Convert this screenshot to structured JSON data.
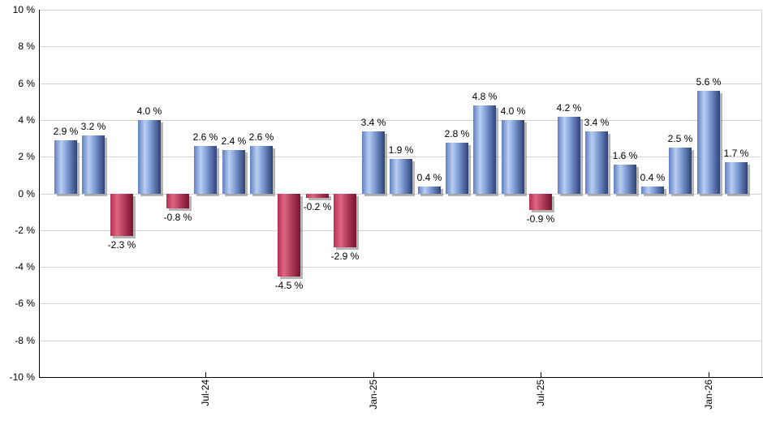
{
  "chart_data": {
    "type": "bar",
    "title": "",
    "xlabel": "",
    "ylabel": "",
    "ylim": [
      -10,
      10
    ],
    "grid": true,
    "legend": "none",
    "bars": [
      {
        "value": 2.9,
        "label": "2.9 %"
      },
      {
        "value": 3.2,
        "label": "3.2 %"
      },
      {
        "value": -2.3,
        "label": "-2.3 %"
      },
      {
        "value": 4.0,
        "label": "4.0 %"
      },
      {
        "value": -0.8,
        "label": "-0.8 %"
      },
      {
        "value": 2.6,
        "label": "2.6 %"
      },
      {
        "value": 2.4,
        "label": "2.4 %"
      },
      {
        "value": 2.6,
        "label": "2.6 %"
      },
      {
        "value": -4.5,
        "label": "-4.5 %"
      },
      {
        "value": -0.2,
        "label": "-0.2 %"
      },
      {
        "value": -2.9,
        "label": "-2.9 %"
      },
      {
        "value": 3.4,
        "label": "3.4 %"
      },
      {
        "value": 1.9,
        "label": "1.9 %"
      },
      {
        "value": 0.4,
        "label": "0.4 %"
      },
      {
        "value": 2.8,
        "label": "2.8 %"
      },
      {
        "value": 4.8,
        "label": "4.8 %"
      },
      {
        "value": 4.0,
        "label": "4.0 %"
      },
      {
        "value": -0.9,
        "label": "-0.9 %"
      },
      {
        "value": 4.2,
        "label": "4.2 %"
      },
      {
        "value": 3.4,
        "label": "3.4 %"
      },
      {
        "value": 1.6,
        "label": "1.6 %"
      },
      {
        "value": 0.4,
        "label": "0.4 %"
      },
      {
        "value": 2.5,
        "label": "2.5 %"
      },
      {
        "value": 5.6,
        "label": "5.6 %"
      },
      {
        "value": 1.7,
        "label": "1.7 %"
      }
    ],
    "x_ticks": [
      {
        "label": "Jul-24",
        "bar_index": 5
      },
      {
        "label": "Jan-25",
        "bar_index": 11
      },
      {
        "label": "Jul-25",
        "bar_index": 17
      },
      {
        "label": "Jan-26",
        "bar_index": 23
      }
    ],
    "y_ticks": [
      {
        "value": 10,
        "label": "10 %"
      },
      {
        "value": 8,
        "label": "8 %"
      },
      {
        "value": 6,
        "label": "6 %"
      },
      {
        "value": 4,
        "label": "4 %"
      },
      {
        "value": 2,
        "label": "2 %"
      },
      {
        "value": 0,
        "label": "0 %"
      },
      {
        "value": -2,
        "label": "-2 %"
      },
      {
        "value": -4,
        "label": "-4 %"
      },
      {
        "value": -6,
        "label": "-6 %"
      },
      {
        "value": -8,
        "label": "-8 %"
      },
      {
        "value": -10,
        "label": "-10 %"
      }
    ],
    "positive_color": "#7c9dd8",
    "negative_color": "#c43a5e",
    "gridline_color": "#d5d5d5",
    "axis_color": "#000000",
    "label_color": "#000000",
    "shadow_color": "#8c8c8c",
    "background_color": "#ffffff"
  }
}
